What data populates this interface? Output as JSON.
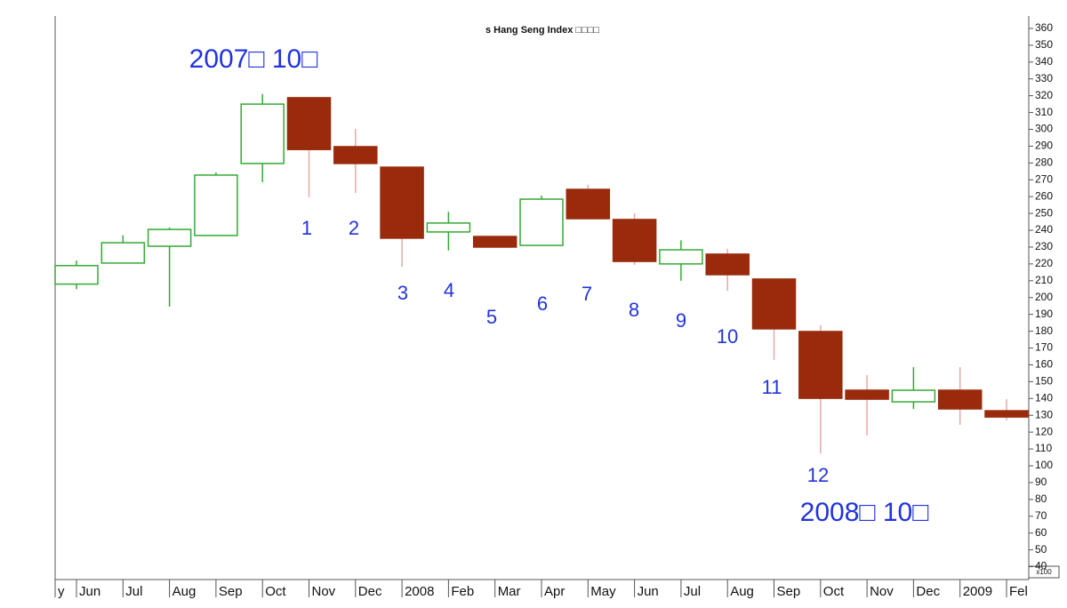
{
  "chart_data": {
    "type": "candlestick",
    "title": "s Hang Seng Index □□□□",
    "categories": [
      "y",
      "Jun",
      "Jul",
      "Aug",
      "Sep",
      "Oct",
      "Nov",
      "Dec",
      "2008",
      "Feb",
      "Mar",
      "Apr",
      "May",
      "Jun",
      "Jul",
      "Aug",
      "Sep",
      "Oct",
      "Nov",
      "Dec",
      "2009",
      "Fel"
    ],
    "open": [
      null,
      208,
      220.5,
      230.5,
      236.9,
      279.7,
      318.8,
      289.7,
      277.5,
      239,
      236.3,
      231,
      264.3,
      246.4,
      220,
      225.8,
      211,
      179.8,
      144.9,
      138,
      144.9,
      132.7
    ],
    "high": [
      null,
      222,
      237,
      241.6,
      274.4,
      321,
      318.8,
      300.3,
      277.5,
      251,
      236.3,
      260.6,
      267,
      250,
      234,
      229,
      211,
      183.5,
      153.9,
      158.6,
      158.6,
      139.6
    ],
    "low": [
      null,
      205,
      220.5,
      194.6,
      236.9,
      268.6,
      259.6,
      262.2,
      218.4,
      228,
      230,
      231,
      246.9,
      219.4,
      210,
      204,
      163,
      107.4,
      118,
      133.8,
      124.3,
      126.9
    ],
    "close": [
      null,
      219,
      232.6,
      240.5,
      272.8,
      315,
      288,
      279.7,
      235.3,
      244.3,
      230,
      258.5,
      246.9,
      221.5,
      228.4,
      213.6,
      181.4,
      140.1,
      139.6,
      144.9,
      133.8,
      129
    ],
    "up_color": "#33aa33",
    "down_color": "#9a2a0c",
    "down_wick_color": "#e8a8a8",
    "y_axis_side": "right",
    "y_unit_label": "x100",
    "ylim": [
      35,
      365
    ],
    "yticks": [
      40,
      50,
      60,
      70,
      80,
      90,
      100,
      110,
      120,
      130,
      140,
      150,
      160,
      170,
      180,
      190,
      200,
      210,
      220,
      230,
      240,
      250,
      260,
      270,
      280,
      290,
      300,
      310,
      320,
      330,
      340,
      350,
      360
    ],
    "annotations": [
      "2007□ 10□",
      "1",
      "2",
      "3",
      "4",
      "5",
      "6",
      "7",
      "8",
      "9",
      "10",
      "11",
      "12",
      "2008□ 10□"
    ],
    "annotation_color": "#2233dd"
  }
}
